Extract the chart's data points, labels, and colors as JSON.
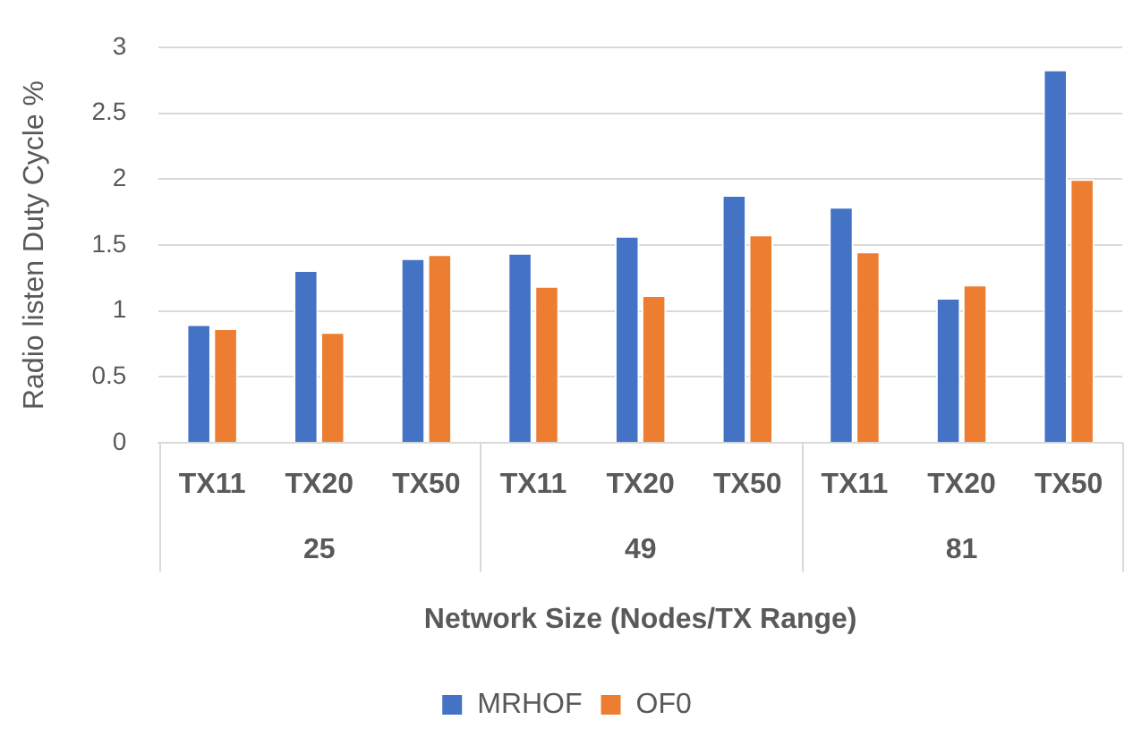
{
  "chart_data": {
    "type": "bar",
    "categories": [
      "TX11",
      "TX20",
      "TX50",
      "TX11",
      "TX20",
      "TX50",
      "TX11",
      "TX20",
      "TX50"
    ],
    "series": [
      {
        "name": "MRHOF",
        "color": "#4472c4",
        "values": [
          0.9,
          1.31,
          1.4,
          1.44,
          1.57,
          1.88,
          1.79,
          1.1,
          2.83
        ]
      },
      {
        "name": "OF0",
        "color": "#ed7d31",
        "values": [
          0.87,
          0.84,
          1.43,
          1.19,
          1.12,
          1.58,
          1.45,
          1.2,
          2.0
        ]
      }
    ],
    "xlabel": "Network Size (Nodes/TX Range)",
    "ylabel": "Radio listen Duty Cycle %",
    "annotations": [
      "25",
      "49",
      "81"
    ],
    "ylim": [
      0,
      3
    ],
    "yticks": [
      0,
      0.5,
      1,
      1.5,
      2,
      2.5,
      3
    ],
    "grid": "y",
    "legend": "bottom"
  }
}
